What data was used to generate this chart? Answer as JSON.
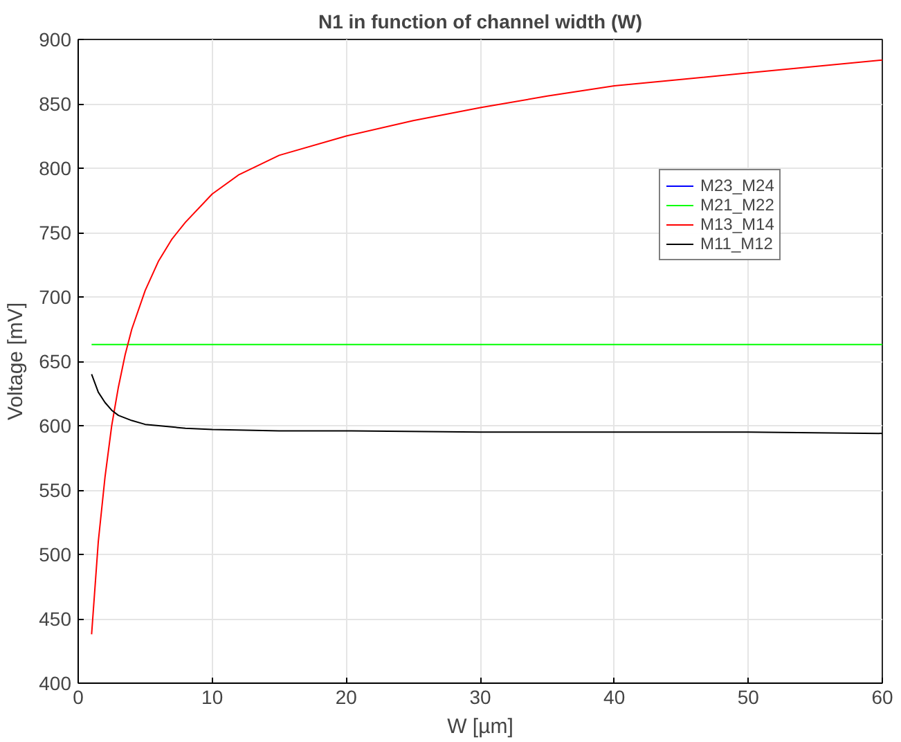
{
  "chart_data": {
    "type": "line",
    "title": "N1 in function of channel width (W)",
    "xlabel": "W [µm]",
    "ylabel": "Voltage [mV]",
    "xlim": [
      0,
      60
    ],
    "ylim": [
      400,
      900
    ],
    "xticks": [
      0,
      10,
      20,
      30,
      40,
      50,
      60
    ],
    "yticks": [
      400,
      450,
      500,
      550,
      600,
      650,
      700,
      750,
      800,
      850,
      900
    ],
    "grid": true,
    "legend": "top right",
    "marker": "none",
    "line_style": "solid",
    "series": [
      {
        "name": "M23_M24",
        "color": "#0000ff"
      },
      {
        "name": "M21_M22",
        "color": "#00ff00",
        "x": [
          1,
          60
        ],
        "values": [
          663,
          663
        ]
      },
      {
        "name": "M13_M14",
        "color": "#ff0000",
        "x": [
          1,
          1.5,
          2,
          2.5,
          3,
          3.5,
          4,
          5,
          6,
          7,
          8,
          10,
          12,
          15,
          20,
          25,
          30,
          35,
          40,
          45,
          50,
          55,
          60
        ],
        "values": [
          438,
          510,
          560,
          600,
          630,
          655,
          675,
          705,
          728,
          745,
          758,
          780,
          795,
          810,
          825,
          837,
          847,
          856,
          864,
          869,
          874,
          879,
          884
        ]
      },
      {
        "name": "M11_M12",
        "color": "#000000",
        "x": [
          1,
          1.5,
          2,
          2.5,
          3,
          4,
          5,
          6,
          8,
          10,
          15,
          20,
          30,
          40,
          50,
          60
        ],
        "values": [
          640,
          626,
          618,
          612,
          608,
          604,
          601,
          600,
          598,
          597,
          596,
          596,
          595,
          595,
          595,
          594
        ]
      }
    ]
  }
}
